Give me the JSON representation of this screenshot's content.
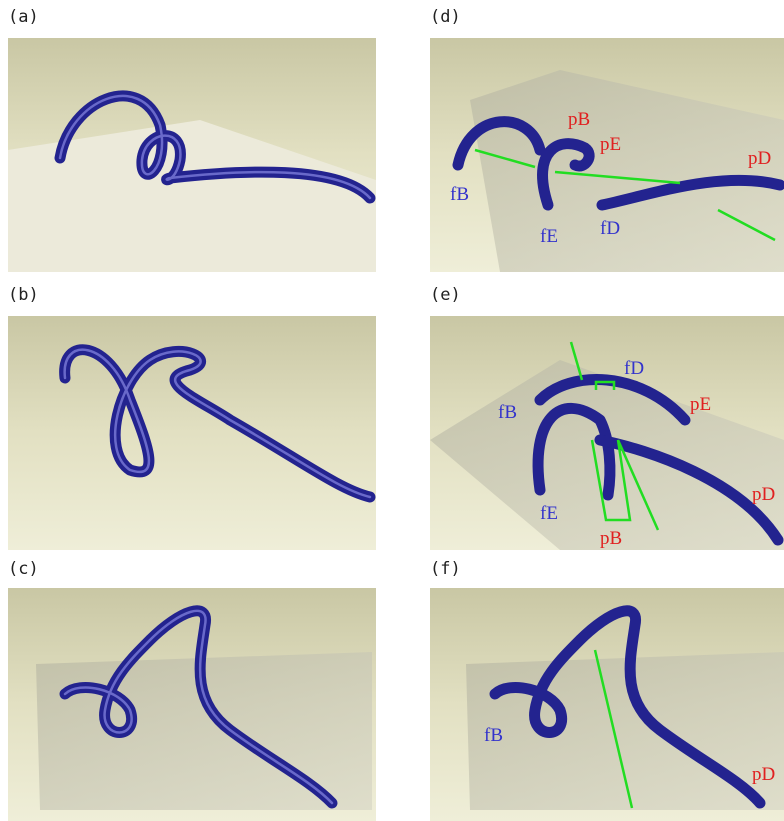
{
  "panels": [
    {
      "label": "(a)",
      "annotations": []
    },
    {
      "label": "(b)",
      "annotations": []
    },
    {
      "label": "(c)",
      "annotations": []
    },
    {
      "label": "(d)",
      "annotations": [
        "pB",
        "pE",
        "pD",
        "fB",
        "fE",
        "fD"
      ]
    },
    {
      "label": "(e)",
      "annotations": [
        "fD",
        "fB",
        "pE",
        "pD",
        "fE",
        "pB"
      ]
    },
    {
      "label": "(f)",
      "annotations": [
        "fB",
        "pD"
      ]
    }
  ]
}
